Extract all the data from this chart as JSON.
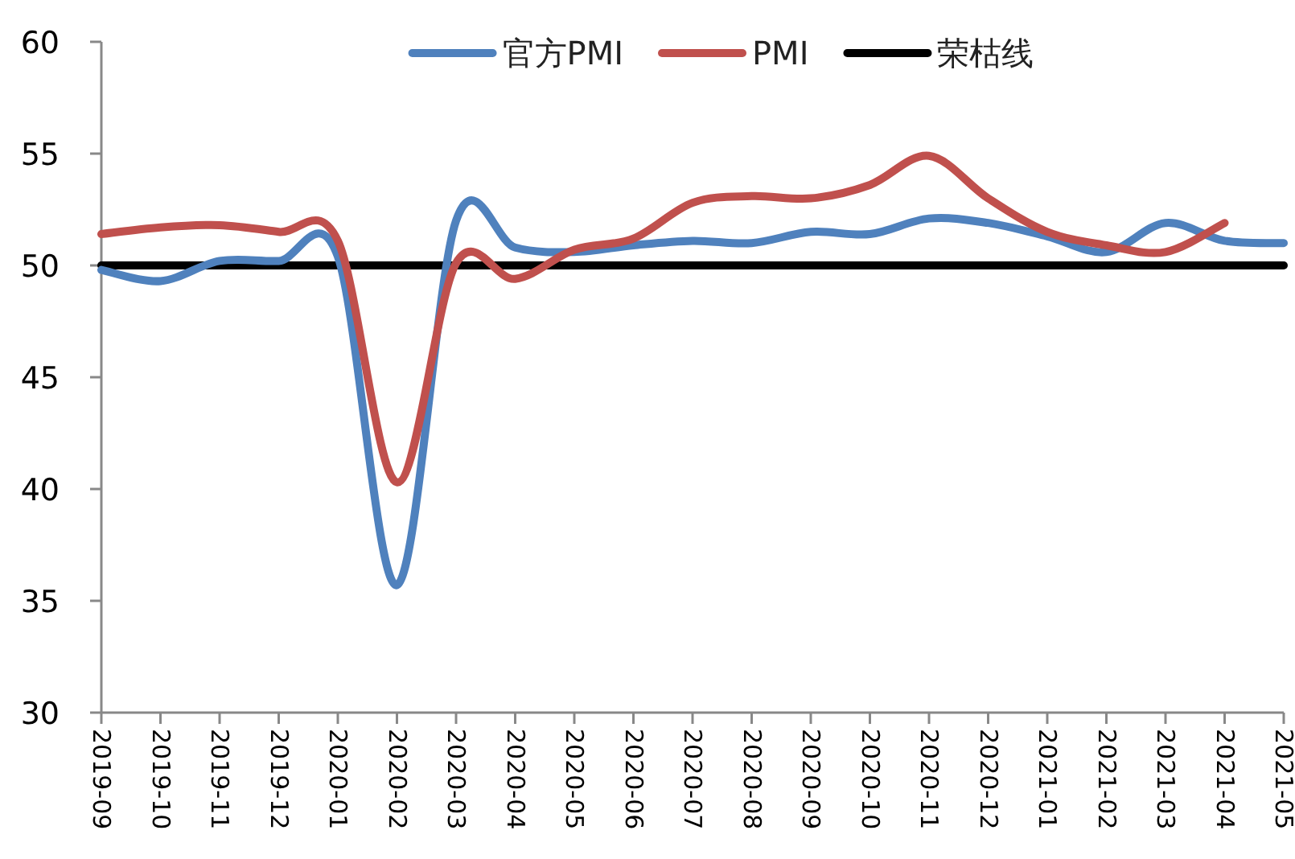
{
  "chart_data": {
    "type": "line",
    "categories": [
      "2019-09",
      "2019-10",
      "2019-11",
      "2019-12",
      "2020-01",
      "2020-02",
      "2020-03",
      "2020-04",
      "2020-05",
      "2020-06",
      "2020-07",
      "2020-08",
      "2020-09",
      "2020-10",
      "2020-11",
      "2020-12",
      "2021-01",
      "2021-02",
      "2021-03",
      "2021-04",
      "2021-05"
    ],
    "ylim": [
      30,
      60
    ],
    "yticks": [
      30,
      35,
      40,
      45,
      50,
      55,
      60
    ],
    "series": [
      {
        "name": "官方PMI",
        "color": "#4f81bd",
        "values": [
          49.8,
          49.3,
          50.2,
          50.2,
          50.4,
          35.7,
          52.0,
          50.8,
          50.6,
          50.9,
          51.1,
          51.0,
          51.5,
          51.4,
          52.1,
          51.9,
          51.3,
          50.6,
          51.9,
          51.1,
          51.0
        ]
      },
      {
        "name": "PMI",
        "color": "#c0504d",
        "values": [
          51.4,
          51.7,
          51.8,
          51.5,
          51.1,
          40.3,
          50.1,
          49.4,
          50.7,
          51.2,
          52.8,
          53.1,
          53.0,
          53.6,
          54.9,
          53.0,
          51.5,
          50.9,
          50.6,
          51.9,
          null
        ]
      }
    ],
    "ref_lines": [
      {
        "axis": "y",
        "value": 50,
        "label": "荣枯线",
        "color": "#000000"
      }
    ],
    "legend": "top",
    "grid": false,
    "marker": "none",
    "line_style": "solid"
  }
}
